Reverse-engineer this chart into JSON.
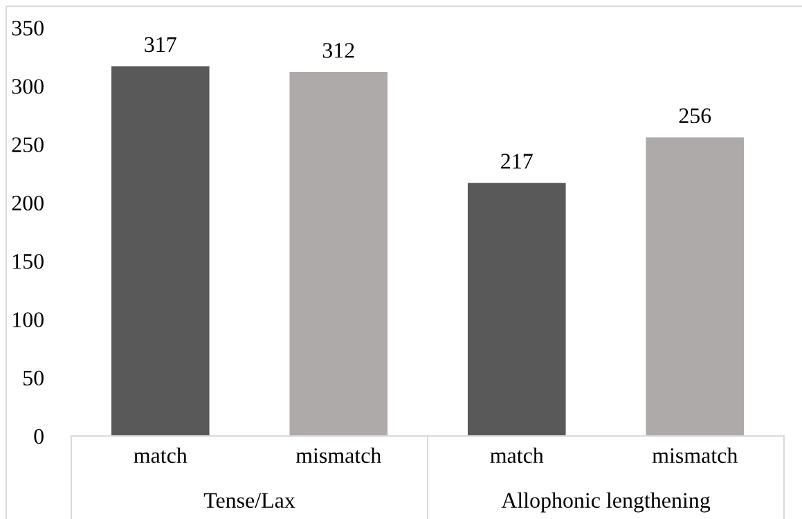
{
  "chart_data": {
    "type": "bar",
    "categories": [
      "match",
      "mismatch",
      "match",
      "mismatch"
    ],
    "values": [
      317,
      312,
      217,
      256
    ],
    "colors": [
      "#595959",
      "#aeaaaa",
      "#595959",
      "#aeaaaa"
    ],
    "ylim": [
      0,
      350
    ],
    "yticks": [
      0,
      50,
      100,
      150,
      200,
      250,
      300,
      350
    ],
    "data_labels": true,
    "annotations": [
      "Tense/Lax",
      "Allophonic lengthening"
    ]
  }
}
